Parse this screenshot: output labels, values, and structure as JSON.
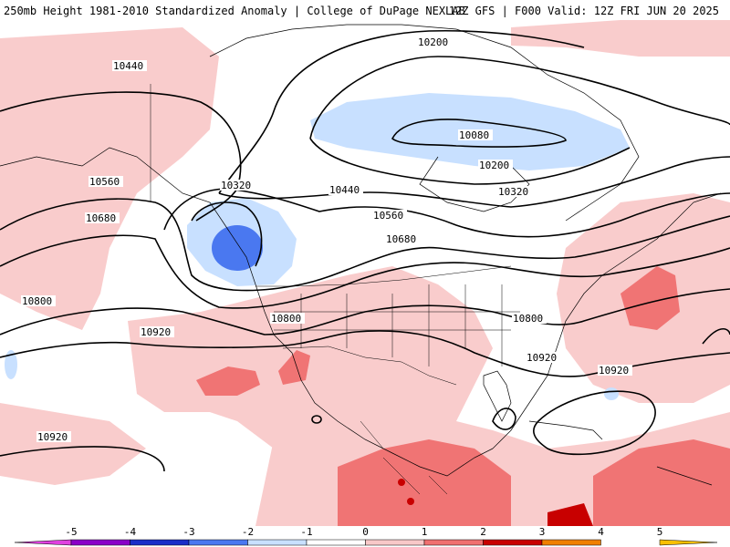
{
  "header": {
    "title_left": "250mb Height 1981-2010 Standardized Anomaly | College of DuPage NEXLAB",
    "title_right": "12Z GFS | F000 Valid: 12Z FRI JUN 20 2025"
  },
  "map": {
    "contour_labels": [
      "10200",
      "10440",
      "10080",
      "10200",
      "10320",
      "10320",
      "10440",
      "10560",
      "10560",
      "10680",
      "10680",
      "10800",
      "10800",
      "10800",
      "10920",
      "10920",
      "10920",
      "10920"
    ]
  },
  "colorbar": {
    "ticks": [
      "-5",
      "-4",
      "-3",
      "-2",
      "-1",
      "0",
      "1",
      "2",
      "3",
      "4",
      "5"
    ],
    "colors": [
      "#e040e0",
      "#8a00c8",
      "#1a2ec8",
      "#4a78f0",
      "#c8e0ff",
      "#ffffff",
      "#f8c8c8",
      "#f07070",
      "#c80000",
      "#f08000",
      "#f8c000"
    ]
  }
}
